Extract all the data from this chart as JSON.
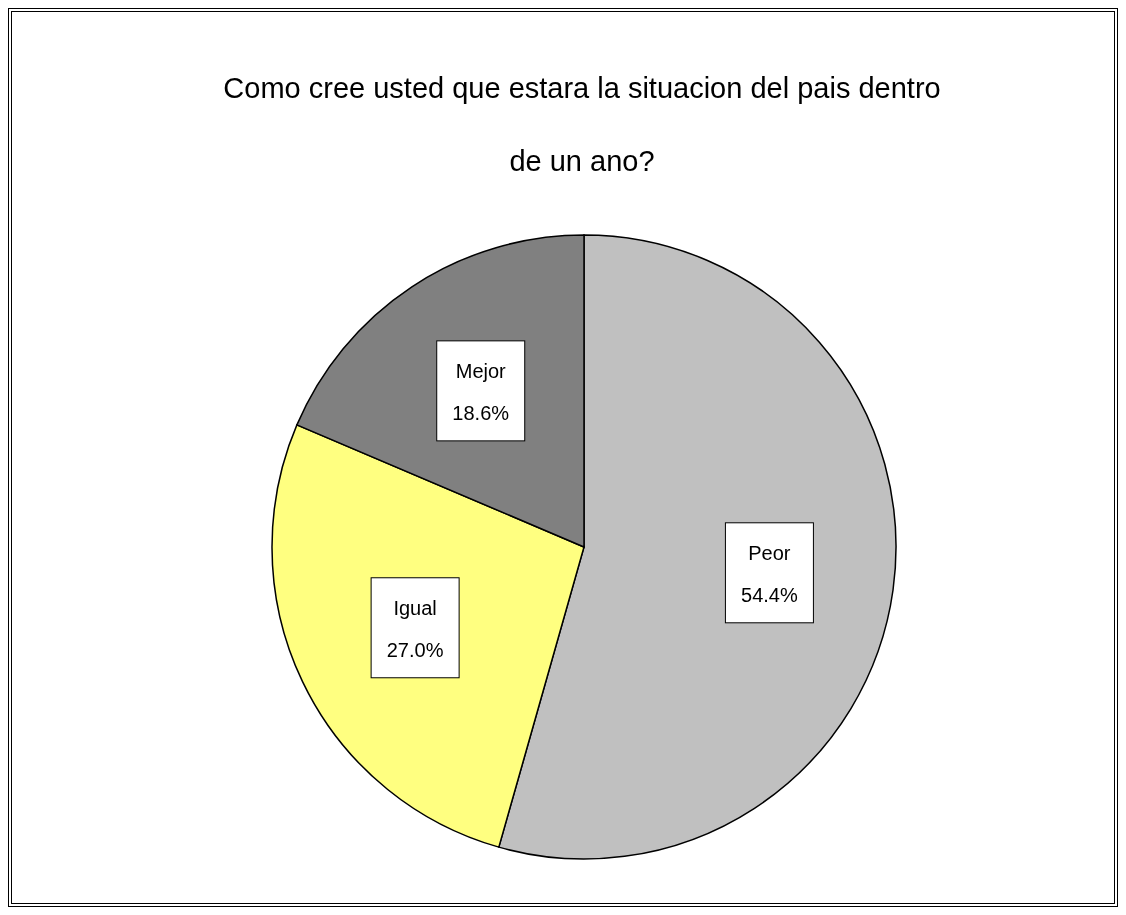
{
  "chart_data": {
    "type": "pie",
    "title": "Como cree usted que estara la situacion del pais dentro de un ano?",
    "categories": [
      "Peor",
      "Igual",
      "Mejor"
    ],
    "values": [
      54.4,
      27.0,
      18.6
    ],
    "value_labels": [
      "54.4%",
      "27.0%",
      "18.6%"
    ],
    "colors": [
      "#c0c0c0",
      "#ffff80",
      "#808080"
    ]
  }
}
